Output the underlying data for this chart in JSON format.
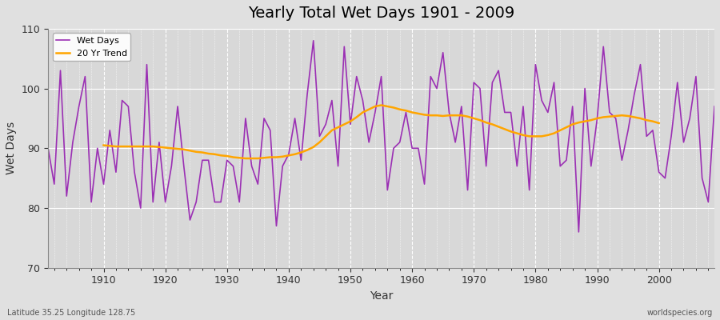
{
  "title": "Yearly Total Wet Days 1901 - 2009",
  "xlabel": "Year",
  "ylabel": "Wet Days",
  "ylim": [
    70,
    110
  ],
  "xlim": [
    1901,
    2009
  ],
  "yticks": [
    70,
    80,
    90,
    100,
    110
  ],
  "xticks": [
    1910,
    1920,
    1930,
    1940,
    1950,
    1960,
    1970,
    1980,
    1990,
    2000
  ],
  "wet_days_color": "#9B30B4",
  "trend_color": "#FFA500",
  "fig_bg_color": "#E0E0E0",
  "plot_bg_color": "#D8D8D8",
  "legend_labels": [
    "Wet Days",
    "20 Yr Trend"
  ],
  "footer_left": "Latitude 35.25 Longitude 128.75",
  "footer_right": "worldspecies.org",
  "years": [
    1901,
    1902,
    1903,
    1904,
    1905,
    1906,
    1907,
    1908,
    1909,
    1910,
    1911,
    1912,
    1913,
    1914,
    1915,
    1916,
    1917,
    1918,
    1919,
    1920,
    1921,
    1922,
    1923,
    1924,
    1925,
    1926,
    1927,
    1928,
    1929,
    1930,
    1931,
    1932,
    1933,
    1934,
    1935,
    1936,
    1937,
    1938,
    1939,
    1940,
    1941,
    1942,
    1943,
    1944,
    1945,
    1946,
    1947,
    1948,
    1949,
    1950,
    1951,
    1952,
    1953,
    1954,
    1955,
    1956,
    1957,
    1958,
    1959,
    1960,
    1961,
    1962,
    1963,
    1964,
    1965,
    1966,
    1967,
    1968,
    1969,
    1970,
    1971,
    1972,
    1973,
    1974,
    1975,
    1976,
    1977,
    1978,
    1979,
    1980,
    1981,
    1982,
    1983,
    1984,
    1985,
    1986,
    1987,
    1988,
    1989,
    1990,
    1991,
    1992,
    1993,
    1994,
    1995,
    1996,
    1997,
    1998,
    1999,
    2000,
    2001,
    2002,
    2003,
    2004,
    2005,
    2006,
    2007,
    2008,
    2009
  ],
  "wet_days": [
    90,
    84,
    103,
    82,
    91,
    97,
    102,
    81,
    90,
    84,
    93,
    86,
    98,
    97,
    86,
    80,
    104,
    81,
    91,
    81,
    87,
    97,
    87,
    78,
    81,
    88,
    88,
    81,
    81,
    88,
    87,
    81,
    95,
    87,
    84,
    95,
    93,
    77,
    87,
    89,
    95,
    88,
    99,
    108,
    92,
    94,
    98,
    87,
    107,
    94,
    102,
    98,
    91,
    96,
    102,
    83,
    90,
    91,
    96,
    90,
    90,
    84,
    102,
    100,
    106,
    96,
    91,
    97,
    83,
    101,
    100,
    87,
    101,
    103,
    96,
    96,
    87,
    97,
    83,
    104,
    98,
    96,
    101,
    87,
    88,
    97,
    76,
    100,
    87,
    95,
    107,
    96,
    95,
    88,
    93,
    99,
    104,
    92,
    93,
    86,
    85,
    92,
    101,
    91,
    95,
    102,
    85,
    81,
    97
  ],
  "trend": [
    null,
    null,
    null,
    null,
    null,
    null,
    null,
    null,
    null,
    90.5,
    90.4,
    90.3,
    90.3,
    90.3,
    90.3,
    90.3,
    90.3,
    90.3,
    90.2,
    90.1,
    90.0,
    89.9,
    89.8,
    89.6,
    89.4,
    89.3,
    89.1,
    89.0,
    88.8,
    88.7,
    88.5,
    88.4,
    88.3,
    88.3,
    88.3,
    88.4,
    88.5,
    88.5,
    88.6,
    88.8,
    89.0,
    89.3,
    89.7,
    90.2,
    91.0,
    92.0,
    93.0,
    93.5,
    94.0,
    94.5,
    95.2,
    96.0,
    96.5,
    97.0,
    97.2,
    97.0,
    96.8,
    96.5,
    96.3,
    96.0,
    95.8,
    95.6,
    95.5,
    95.5,
    95.4,
    95.5,
    95.5,
    95.5,
    95.3,
    95.0,
    94.7,
    94.3,
    94.0,
    93.6,
    93.2,
    92.8,
    92.5,
    92.2,
    92.0,
    92.0,
    92.0,
    92.2,
    92.5,
    93.0,
    93.5,
    94.0,
    94.3,
    94.5,
    94.7,
    95.0,
    95.2,
    95.3,
    95.4,
    95.5,
    95.4,
    95.2,
    95.0,
    94.7,
    94.5,
    94.2,
    null,
    null,
    null,
    null,
    null,
    null,
    null,
    null,
    null
  ]
}
